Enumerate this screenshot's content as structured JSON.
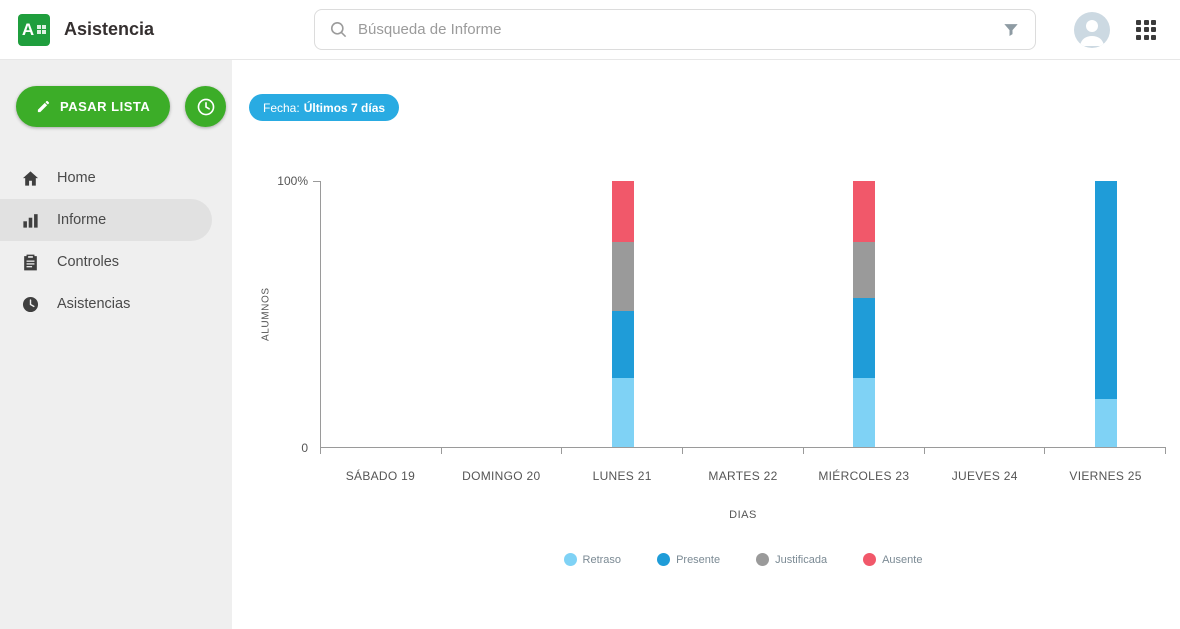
{
  "app": {
    "title": "Asistencia"
  },
  "header": {
    "search_placeholder": "Búsqueda de Informe"
  },
  "sidebar": {
    "pasar_lista_label": "PASAR LISTA",
    "items": [
      {
        "label": "Home",
        "icon": "home-icon",
        "active": false
      },
      {
        "label": "Informe",
        "icon": "bar-chart-icon",
        "active": true
      },
      {
        "label": "Controles",
        "icon": "clipboard-icon",
        "active": false
      },
      {
        "label": "Asistencias",
        "icon": "clock-icon",
        "active": false
      }
    ]
  },
  "filters": {
    "date_label": "Fecha:",
    "date_value": "Últimos 7 días"
  },
  "colors": {
    "brand_green": "#3cad28",
    "badge_blue": "#29abe2"
  },
  "chart_data": {
    "type": "bar",
    "stacked": true,
    "title": "",
    "xlabel": "DIAS",
    "ylabel": "ALUMNOS",
    "ylim": [
      0,
      100
    ],
    "y_ticks": [
      "100%",
      "0"
    ],
    "grid": false,
    "legend_position": "bottom",
    "categories": [
      "SÁBADO 19",
      "DOMINGO 20",
      "LUNES 21",
      "MARTES 22",
      "MIÉRCOLES 23",
      "JUEVES 24",
      "VIERNES 25"
    ],
    "series": [
      {
        "name": "Retraso",
        "color": "#7fd2f5",
        "values": [
          0,
          0,
          26,
          0,
          26,
          0,
          18
        ]
      },
      {
        "name": "Presente",
        "color": "#1f9cd8",
        "values": [
          0,
          0,
          25,
          0,
          30,
          0,
          82
        ]
      },
      {
        "name": "Justificada",
        "color": "#9a9a9a",
        "values": [
          0,
          0,
          26,
          0,
          21,
          0,
          0
        ]
      },
      {
        "name": "Ausente",
        "color": "#f1586a",
        "values": [
          0,
          0,
          23,
          0,
          23,
          0,
          0
        ]
      }
    ]
  }
}
